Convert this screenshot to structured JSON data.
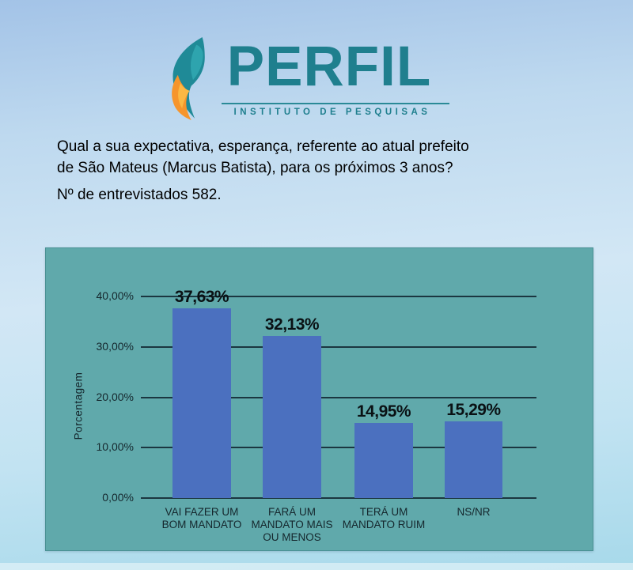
{
  "logo": {
    "brand": "PERFIL",
    "subtitle": "INSTITUTO DE PESQUISAS",
    "brand_color": "#1f7f8e",
    "flame_teal": "#1f8a97",
    "flame_orange": "#f6952c"
  },
  "question": {
    "line1": "Qual a sua expectativa, esperança, referente ao atual prefeito",
    "line2": "de São Mateus (Marcus Batista), para os próximos 3 anos?",
    "respondents": "Nº de entrevistados 582."
  },
  "chart_data": {
    "type": "bar",
    "title": "",
    "xlabel": "",
    "ylabel": "Porcentagem",
    "categories": [
      "VAI FAZER UM\nBOM MANDATO",
      "FARÁ UM\nMANDATO MAIS\nOU MENOS",
      "TERÁ UM\nMANDATO RUIM",
      "NS/NR"
    ],
    "values": [
      37.63,
      32.13,
      14.95,
      15.29
    ],
    "value_labels": [
      "37,63%",
      "32,13%",
      "14,95%",
      "15,29%"
    ],
    "yticks": [
      {
        "value": 40,
        "label": "40,00%"
      },
      {
        "value": 30,
        "label": "30,00%"
      },
      {
        "value": 20,
        "label": "20,00%"
      },
      {
        "value": 10,
        "label": "10,00%"
      },
      {
        "value": 0,
        "label": "0,00%"
      }
    ],
    "ylim": [
      0,
      40
    ],
    "grid": true,
    "legend_position": "none",
    "colors": {
      "bar": "#4b70bf",
      "panel_background": "#60a9ab",
      "gridline": "#1b3640",
      "text": "#15272d"
    }
  }
}
